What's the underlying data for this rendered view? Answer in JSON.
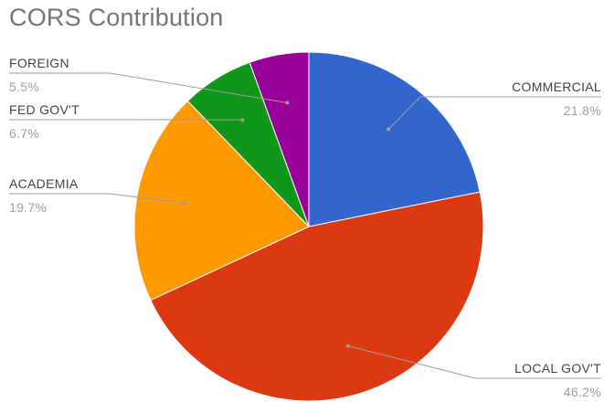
{
  "chart_data": {
    "type": "pie",
    "title": "CORS Contribution",
    "start_angle_deg": 0,
    "direction": "clockwise",
    "slices": [
      {
        "label": "COMMERCIAL",
        "value": 21.8,
        "display": "21.8%",
        "color": "#3366cc"
      },
      {
        "label": "LOCAL GOV'T",
        "value": 46.2,
        "display": "46.2%",
        "color": "#dc3912"
      },
      {
        "label": "ACADEMIA",
        "value": 19.7,
        "display": "19.7%",
        "color": "#ff9900"
      },
      {
        "label": "FED GOV'T",
        "value": 6.7,
        "display": "6.7%",
        "color": "#109618"
      },
      {
        "label": "FOREIGN",
        "value": 5.5,
        "display": "5.5%",
        "color": "#990099"
      }
    ]
  }
}
